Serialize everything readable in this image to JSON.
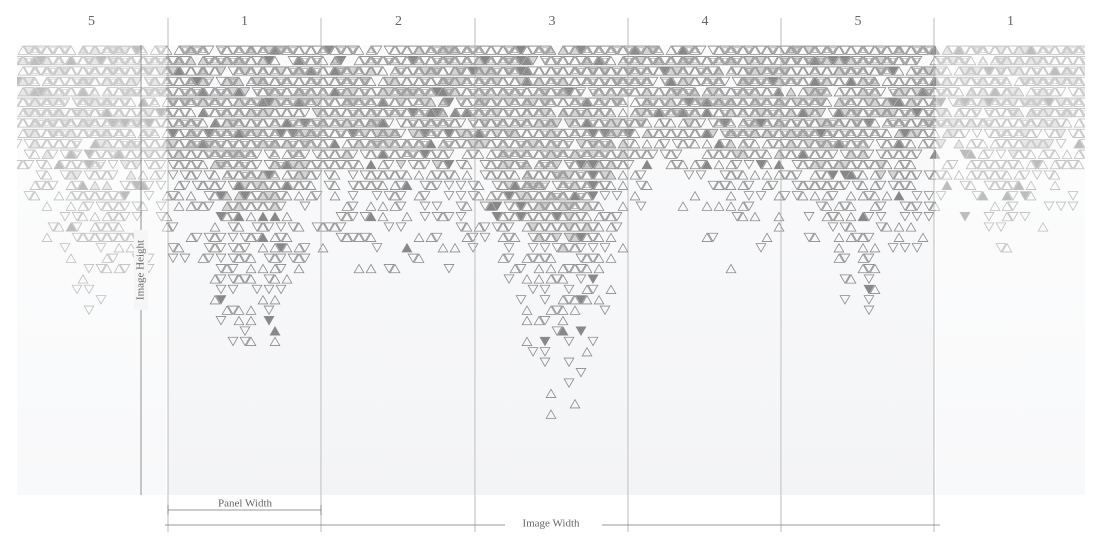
{
  "panels": [
    "5",
    "1",
    "2",
    "3",
    "4",
    "5",
    "1"
  ],
  "dimensions": {
    "panel_width": "Panel Width",
    "image_width": "Image Width",
    "image_height": "Image Height"
  }
}
